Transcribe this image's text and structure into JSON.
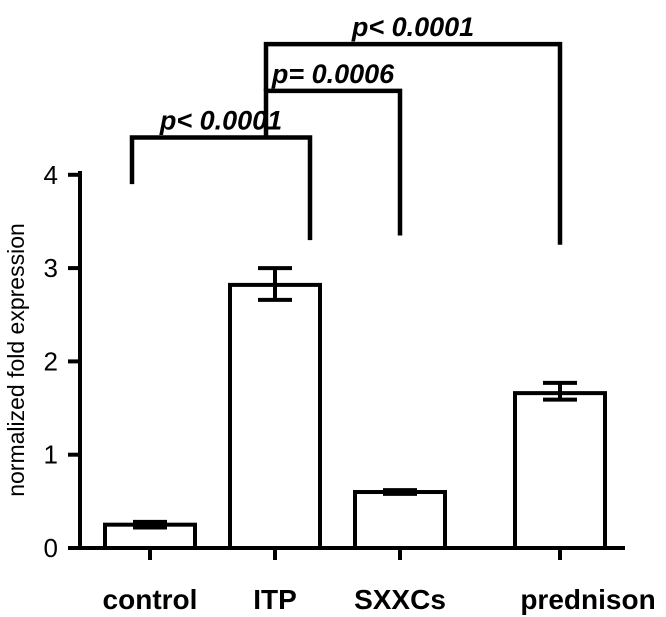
{
  "chart_data": {
    "type": "bar",
    "categories": [
      "control",
      "ITP",
      "SXXCs",
      "prednison"
    ],
    "values": [
      0.25,
      2.82,
      0.6,
      1.66
    ],
    "error": [
      [
        0.22,
        0.28
      ],
      [
        2.66,
        3.0
      ],
      [
        0.58,
        0.62
      ],
      [
        1.59,
        1.77
      ]
    ],
    "title": "",
    "xlabel": "",
    "ylabel": "normalized fold expression",
    "ylim": [
      0,
      4
    ],
    "yticks": [
      0,
      1,
      2,
      3,
      4
    ],
    "grid": false,
    "comparisons": [
      {
        "from": 0,
        "to": 1,
        "label": "p< 0.0001",
        "bracket_y": 4.4,
        "leg_from_y": 3.9,
        "leg_to_y": 3.3
      },
      {
        "from": 1,
        "to": 2,
        "label": "p= 0.0006",
        "bracket_y": 4.9,
        "leg_from_y": 4.4,
        "leg_to_y": 3.35
      },
      {
        "from": 1,
        "to": 3,
        "label": "p< 0.0001",
        "bracket_y": 5.4,
        "leg_from_y": 4.9,
        "leg_to_y": 3.25
      }
    ]
  }
}
